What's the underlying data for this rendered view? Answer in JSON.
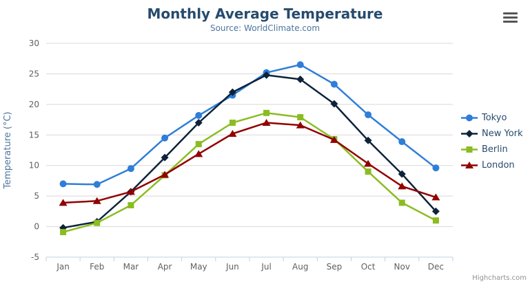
{
  "header": {
    "title": "Monthly Average Temperature",
    "subtitle": "Source: WorldClimate.com"
  },
  "chart_data": {
    "type": "line",
    "categories": [
      "Jan",
      "Feb",
      "Mar",
      "Apr",
      "May",
      "Jun",
      "Jul",
      "Aug",
      "Sep",
      "Oct",
      "Nov",
      "Dec"
    ],
    "series": [
      {
        "name": "Tokyo",
        "marker": "circle",
        "color": "#2f7ed8",
        "values": [
          7.0,
          6.9,
          9.5,
          14.5,
          18.2,
          21.5,
          25.2,
          26.5,
          23.3,
          18.3,
          13.9,
          9.6
        ]
      },
      {
        "name": "New York",
        "marker": "diamond",
        "color": "#0d233a",
        "values": [
          -0.2,
          0.8,
          5.7,
          11.3,
          17.0,
          22.0,
          24.8,
          24.1,
          20.1,
          14.1,
          8.6,
          2.5
        ]
      },
      {
        "name": "Berlin",
        "marker": "square",
        "color": "#8bbc21",
        "values": [
          -0.9,
          0.6,
          3.5,
          8.4,
          13.5,
          17.0,
          18.6,
          17.9,
          14.3,
          9.0,
          3.9,
          1.0
        ]
      },
      {
        "name": "London",
        "marker": "triangle",
        "color": "#910000",
        "values": [
          3.9,
          4.2,
          5.7,
          8.5,
          11.9,
          15.2,
          17.0,
          16.6,
          14.2,
          10.3,
          6.6,
          4.8
        ]
      }
    ],
    "title": "Monthly Average Temperature",
    "subtitle": "Source: WorldClimate.com",
    "xlabel": "",
    "ylabel": "Temperature (°C)",
    "ylim": [
      -5,
      30
    ],
    "yticks": [
      -5,
      0,
      5,
      10,
      15,
      20,
      25,
      30
    ],
    "grid": true,
    "legend_position": "right"
  },
  "colors": {
    "title": "#274b6d",
    "subtitle": "#4d759e",
    "tick_label": "#606060",
    "gridline": "#d8d8d8",
    "axis_line": "#c0d0e0",
    "legend_text": "#274b6d",
    "credit": "#909090"
  },
  "menu": {
    "icon": "hamburger-menu-icon"
  },
  "credit": {
    "label": "Highcharts.com"
  }
}
